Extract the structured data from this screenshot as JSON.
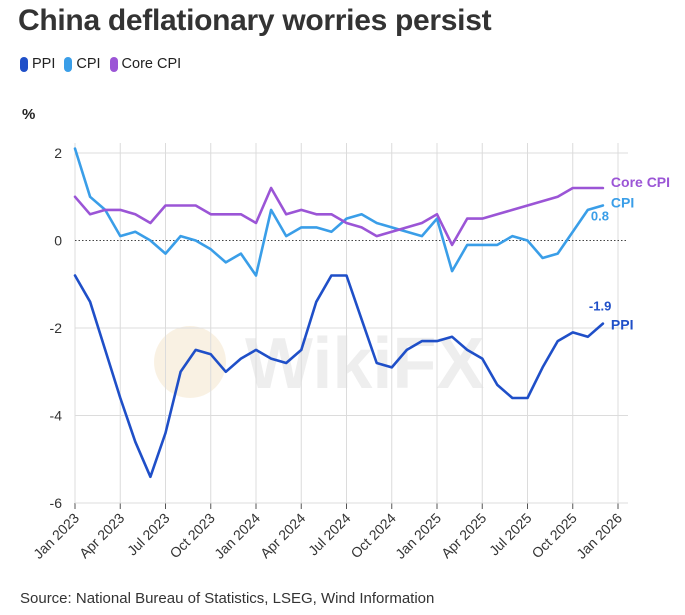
{
  "header": {
    "title": "China deflationary worries persist"
  },
  "legend": [
    {
      "label": "PPI",
      "color": "#1f4fc8"
    },
    {
      "label": "CPI",
      "color": "#3a9ee8"
    },
    {
      "label": "Core CPI",
      "color": "#9b55d6"
    }
  ],
  "unit_label": "%",
  "source": "Source: National Bureau of Statistics, LSEG, Wind Information",
  "watermark_text": "WikiFX",
  "chart_data": {
    "type": "line",
    "title": "China deflationary worries persist",
    "ylabel": "%",
    "xlabel": "",
    "ylim": [
      -6,
      2
    ],
    "yticks": [
      2,
      0,
      -2,
      -4,
      -6
    ],
    "ytick_labels": [
      "2",
      "0",
      "-2",
      "-4",
      "-6"
    ],
    "x_start": "Jan 2023",
    "xticks": [
      {
        "index": 0,
        "label": "Jan 2023"
      },
      {
        "index": 3,
        "label": "Apr 2023"
      },
      {
        "index": 6,
        "label": "Jul 2023"
      },
      {
        "index": 9,
        "label": "Oct 2023"
      },
      {
        "index": 12,
        "label": "Jan 2024"
      },
      {
        "index": 15,
        "label": "Apr 2024"
      },
      {
        "index": 18,
        "label": "Jul 2024"
      },
      {
        "index": 21,
        "label": "Oct 2024"
      },
      {
        "index": 24,
        "label": "Jan 2025"
      },
      {
        "index": 27,
        "label": "Apr 2025"
      },
      {
        "index": 30,
        "label": "Jul 2025"
      },
      {
        "index": 33,
        "label": "Oct 2025"
      },
      {
        "index": 36,
        "label": "Jan 2026"
      }
    ],
    "x_range": [
      0,
      36
    ],
    "zero_line": true,
    "series": [
      {
        "name": "PPI",
        "color": "#1f4fc8",
        "end_label": "PPI",
        "end_value_label": "-1.9",
        "values": [
          -0.8,
          -1.4,
          -2.5,
          -3.6,
          -4.6,
          -5.4,
          -4.4,
          -3.0,
          -2.5,
          -2.6,
          -3.0,
          -2.7,
          -2.5,
          -2.7,
          -2.8,
          -2.5,
          -1.4,
          -0.8,
          -0.8,
          -1.8,
          -2.8,
          -2.9,
          -2.5,
          -2.3,
          -2.3,
          -2.2,
          -2.5,
          -2.7,
          -3.3,
          -3.6,
          -3.6,
          -2.9,
          -2.3,
          -2.1,
          -2.2,
          -1.9
        ]
      },
      {
        "name": "CPI",
        "color": "#3a9ee8",
        "end_label": "CPI",
        "end_value_label": "0.8",
        "values": [
          2.1,
          1.0,
          0.7,
          0.1,
          0.2,
          0.0,
          -0.3,
          0.1,
          0.0,
          -0.2,
          -0.5,
          -0.3,
          -0.8,
          0.7,
          0.1,
          0.3,
          0.3,
          0.2,
          0.5,
          0.6,
          0.4,
          0.3,
          0.2,
          0.1,
          0.5,
          -0.7,
          -0.1,
          -0.1,
          -0.1,
          0.1,
          0.0,
          -0.4,
          -0.3,
          0.2,
          0.7,
          0.8
        ]
      },
      {
        "name": "Core CPI",
        "color": "#9b55d6",
        "end_label": "Core CPI",
        "end_value_label": "",
        "values": [
          1.0,
          0.6,
          0.7,
          0.7,
          0.6,
          0.4,
          0.8,
          0.8,
          0.8,
          0.6,
          0.6,
          0.6,
          0.4,
          1.2,
          0.6,
          0.7,
          0.6,
          0.6,
          0.4,
          0.3,
          0.1,
          0.2,
          0.3,
          0.4,
          0.6,
          -0.1,
          0.5,
          0.5,
          0.6,
          0.7,
          0.8,
          0.9,
          1.0,
          1.2,
          1.2,
          1.2
        ]
      }
    ]
  }
}
